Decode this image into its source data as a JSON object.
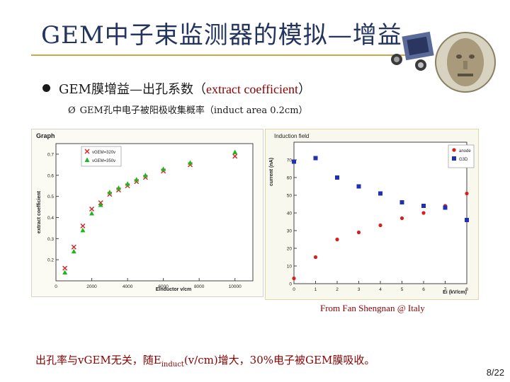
{
  "title": "GEM中子束监测器的模拟—增益",
  "bullet1": {
    "cn": "GEM膜增益—出孔系数（",
    "en": "extract coefficient",
    "close": "）"
  },
  "bullet2": {
    "arrow": "Ø",
    "text": "GEM孔中电子被阳极收集概率（induct area 0.2cm）"
  },
  "caption": "From Fan Shengnan @ Italy",
  "conclusion": {
    "pre": "出孔率与vGEM无关，随E",
    "sub": "induct",
    "post": "(v/cm)增大，30%电子被GEM膜吸收。"
  },
  "page_number": "8/22",
  "colors": {
    "title": "#23355e",
    "accent": "#8b0000",
    "rule": "#c9a94a",
    "series_red": "#d62020",
    "series_green": "#22b522",
    "series_blue": "#2030b0"
  },
  "chart_data": [
    {
      "type": "scatter",
      "title": "Graph",
      "xlabel": "Einductor v/cm",
      "ylabel": "extract coefficient",
      "xlim": [
        0,
        11000
      ],
      "ylim": [
        0.1,
        0.75
      ],
      "xticks": [
        "0",
        "2000",
        "4000",
        "6000",
        "8000",
        "10000"
      ],
      "yticks": [
        "0.2",
        "0.3",
        "0.4",
        "0.5",
        "0.6",
        "0.7"
      ],
      "legend_position": "top-left",
      "series": [
        {
          "name": "vGEM=320v",
          "marker": "cross",
          "color": "#d62020",
          "x": [
            500,
            1000,
            1500,
            2000,
            2500,
            3000,
            3500,
            4000,
            4500,
            5000,
            6000,
            7500,
            10000
          ],
          "y": [
            0.16,
            0.26,
            0.36,
            0.44,
            0.47,
            0.51,
            0.53,
            0.55,
            0.57,
            0.59,
            0.62,
            0.65,
            0.69
          ]
        },
        {
          "name": "vGEM=350v",
          "marker": "triangle",
          "color": "#22b522",
          "x": [
            500,
            1000,
            1500,
            2000,
            2500,
            3000,
            3500,
            4000,
            4500,
            5000,
            6000,
            7500,
            10000
          ],
          "y": [
            0.14,
            0.24,
            0.34,
            0.42,
            0.46,
            0.52,
            0.54,
            0.56,
            0.58,
            0.6,
            0.63,
            0.66,
            0.71
          ]
        }
      ]
    },
    {
      "type": "scatter",
      "title": "Induction field",
      "xlabel": "Ei (kV/cm)",
      "ylabel": "current (nA)",
      "xlim": [
        0,
        8
      ],
      "ylim": [
        0,
        80
      ],
      "xticks": [
        "0",
        "1",
        "2",
        "3",
        "4",
        "5",
        "6",
        "7",
        "8"
      ],
      "yticks": [
        "0",
        "10",
        "20",
        "30",
        "40",
        "50",
        "60",
        "70"
      ],
      "legend_position": "top-right",
      "series": [
        {
          "name": "anode",
          "marker": "circle",
          "color": "#d62020",
          "x": [
            0,
            1,
            2,
            3,
            4,
            5,
            6,
            7,
            8
          ],
          "y": [
            3,
            15,
            25,
            29,
            33,
            37,
            40,
            44,
            51
          ]
        },
        {
          "name": "G3D",
          "marker": "square",
          "color": "#2030b0",
          "x": [
            0,
            1,
            2,
            3,
            4,
            5,
            6,
            7,
            8
          ],
          "y": [
            69,
            71,
            60,
            55,
            51,
            46,
            44,
            43,
            36
          ]
        }
      ]
    }
  ]
}
